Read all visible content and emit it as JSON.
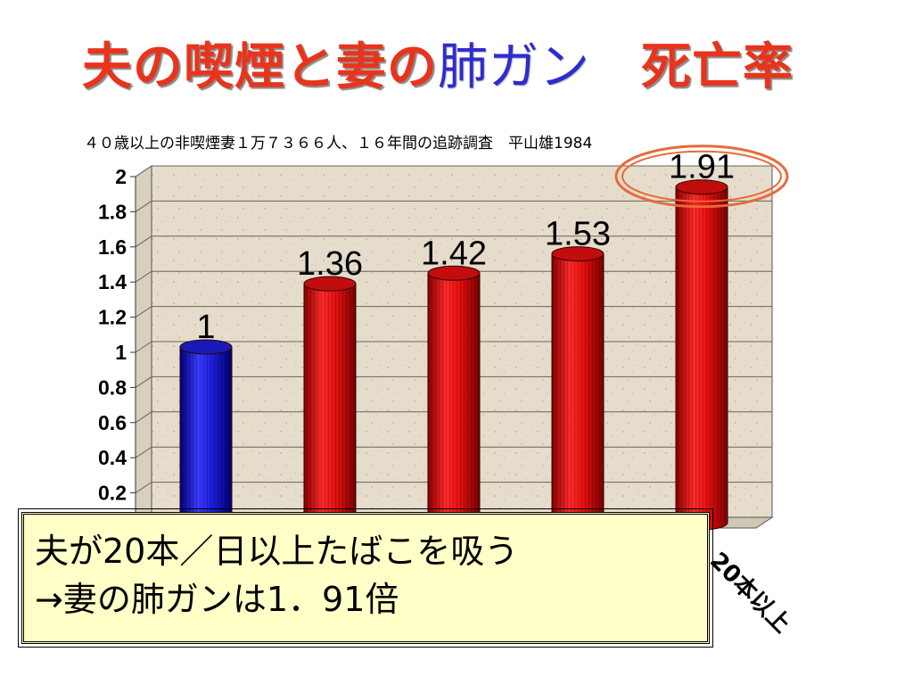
{
  "title": {
    "part1": "夫の喫煙と妻の",
    "part2": "肺ガン",
    "part3": "　死亡率"
  },
  "subtitle": "４０歳以上の非喫煙妻１万７３６６人、１６年間の追跡調査　平山雄1984",
  "colors": {
    "title_red": "#e8341c",
    "title_blue": "#2e2bd0",
    "bar_blue": "#1f1fe0",
    "bar_red": "#e81010",
    "highlight_ellipse": "#e86a3a",
    "callout_bg": "#ffffc8"
  },
  "chart_data": {
    "type": "bar",
    "title": "",
    "xlabel": "",
    "ylabel": "",
    "ylim": [
      0,
      2
    ],
    "y_ticks": [
      "0.2",
      "0.4",
      "0.6",
      "0.8",
      "1",
      "1.2",
      "1.4",
      "1.6",
      "1.8",
      "2"
    ],
    "categories": [
      "",
      "",
      "",
      "",
      "20本以上"
    ],
    "values": [
      1,
      1.36,
      1.42,
      1.53,
      1.91
    ],
    "data_labels": [
      "1",
      "1.36",
      "1.42",
      "1.53",
      "1.91"
    ],
    "bar_colors": [
      "#1f1fe0",
      "#e81010",
      "#e81010",
      "#e81010",
      "#e81010"
    ],
    "highlight_index": 4,
    "grid": true,
    "style": "3d-cylinder"
  },
  "callout": {
    "line1": "夫が20本／日以上たばこを吸う",
    "line2": "→妻の肺ガンは1．91倍"
  }
}
